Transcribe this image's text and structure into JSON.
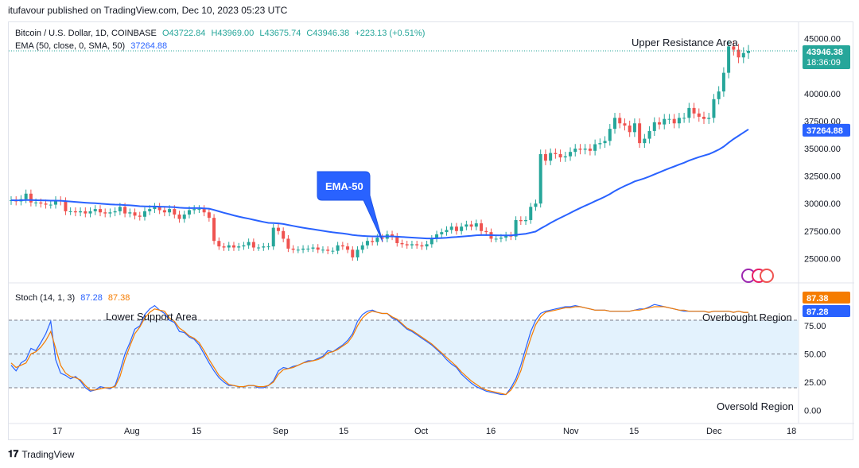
{
  "header": {
    "published": "itufavour published on TradingView.com, Dec 10, 2023 05:23 UTC"
  },
  "legend": {
    "symbol": "Bitcoin / U.S. Dollar, 1D, COINBASE",
    "o": "O43722.84",
    "h": "H43969.00",
    "l": "L43675.74",
    "c": "C43946.38",
    "change": "+223.13 (+0.51%)",
    "ema_label": "EMA (50, close, 0, SMA, 50)",
    "ema_value": "37264.88",
    "stoch_label": "Stoch (14, 1, 3)",
    "stoch_k": "87.28",
    "stoch_d": "87.38"
  },
  "annotations": {
    "upper": "Upper Resistance Area",
    "lower": "Lower Support Area",
    "overbought": "Overbought Region",
    "oversold": "Oversold Region",
    "ema_callout": "EMA-50"
  },
  "badges": {
    "price": "43946.38",
    "countdown": "18:36:09",
    "ema": "37264.88",
    "stoch_d": "87.38",
    "stoch_k": "87.28"
  },
  "footer": {
    "brand": "TradingView"
  },
  "colors": {
    "up": "#26a69a",
    "down": "#ef5350",
    "ema": "#2962ff",
    "stoch_k": "#2962ff",
    "stoch_d": "#f57c00",
    "band": "#e3f2fd"
  },
  "chart_data": [
    {
      "type": "candlestick",
      "title": "Bitcoin / U.S. Dollar, 1D, COINBASE",
      "price_axis": {
        "ticks": [
          "45000.00",
          "40000.00",
          "37500.00",
          "35000.00",
          "32500.00",
          "30000.00",
          "27500.00",
          "25000.00"
        ],
        "range": [
          23000,
          46500
        ]
      },
      "x_ticks": [
        "17",
        "Aug",
        "15",
        "Sep",
        "15",
        "Oct",
        "16",
        "Nov",
        "15",
        "Dec",
        "18"
      ],
      "closes": [
        30300,
        30200,
        30400,
        30900,
        30100,
        30100,
        30000,
        29900,
        29900,
        30300,
        30200,
        29300,
        29300,
        29200,
        29300,
        29100,
        29300,
        29500,
        29200,
        29100,
        29200,
        29300,
        29700,
        29100,
        29200,
        28900,
        28800,
        29300,
        29500,
        29700,
        29400,
        29200,
        29500,
        29000,
        28600,
        29000,
        29400,
        29500,
        29500,
        29200,
        28700,
        26600,
        26100,
        26000,
        26200,
        26000,
        26100,
        26200,
        26500,
        26000,
        26000,
        26100,
        26100,
        27800,
        27500,
        26800,
        25900,
        25800,
        25800,
        25900,
        25900,
        26000,
        25800,
        25800,
        25700,
        25700,
        26200,
        26100,
        25800,
        25100,
        25800,
        26200,
        26600,
        26500,
        26900,
        26800,
        27200,
        27000,
        26400,
        26300,
        26200,
        26300,
        26200,
        26100,
        26300,
        26800,
        27200,
        27400,
        27600,
        27900,
        27500,
        27900,
        28100,
        27900,
        28200,
        27500,
        27400,
        26800,
        26800,
        26900,
        27100,
        27000,
        28500,
        28400,
        28500,
        29700,
        30000,
        34500,
        33900,
        34600,
        34500,
        34200,
        34300,
        34700,
        35000,
        34900,
        35000,
        34800,
        35400,
        35500,
        35700,
        36800,
        37800,
        37300,
        37100,
        36500,
        37300,
        35500,
        35900,
        36600,
        37400,
        37200,
        37700,
        37700,
        37300,
        37800,
        37800,
        38700,
        38200,
        37900,
        37700,
        37800,
        39500,
        40200,
        41900,
        44300,
        44000,
        43300,
        43700,
        43900
      ],
      "ema50": {
        "name": "EMA (50, close, 0, SMA, 50)",
        "last": 37264.88
      },
      "annotations": [
        "Upper Resistance Area",
        "Lower Support Area",
        "EMA-50"
      ]
    },
    {
      "type": "line",
      "title": "Stoch (14, 1, 3)",
      "y_ticks": [
        "75.00",
        "50.00",
        "25.00",
        "0.00"
      ],
      "levels": [
        80,
        50,
        20
      ],
      "series": [
        {
          "name": "%K",
          "last": 87.28,
          "values": [
            40,
            35,
            42,
            45,
            55,
            53,
            60,
            68,
            79,
            45,
            33,
            31,
            28,
            30,
            26,
            20,
            17,
            18,
            21,
            20,
            19,
            22,
            35,
            50,
            60,
            72,
            75,
            85,
            90,
            93,
            89,
            86,
            80,
            78,
            70,
            69,
            65,
            63,
            58,
            50,
            42,
            35,
            29,
            25,
            22,
            22,
            21,
            21,
            22,
            22,
            20,
            20,
            22,
            26,
            35,
            38,
            37,
            39,
            40,
            42,
            44,
            44,
            46,
            48,
            53,
            52,
            55,
            58,
            62,
            68,
            79,
            85,
            88,
            89,
            87,
            86,
            86,
            82,
            80,
            76,
            72,
            70,
            67,
            64,
            61,
            58,
            54,
            50,
            45,
            41,
            38,
            32,
            28,
            24,
            21,
            19,
            17,
            16,
            15,
            14,
            14,
            20,
            28,
            40,
            55,
            70,
            80,
            86,
            88,
            89,
            90,
            91,
            92,
            92,
            93,
            92,
            91,
            90,
            89,
            89,
            89,
            88,
            88,
            88,
            88,
            88,
            89,
            90,
            90,
            92,
            94,
            93,
            92,
            91,
            90,
            89,
            88,
            88,
            88,
            88,
            88,
            87,
            88,
            88,
            88,
            88,
            87,
            88,
            87,
            87
          ]
        },
        {
          "name": "%D",
          "last": 87.38,
          "values": [
            42,
            38,
            40,
            42,
            50,
            52,
            56,
            62,
            70,
            55,
            40,
            33,
            30,
            29,
            27,
            22,
            18,
            18,
            19,
            20,
            20,
            21,
            30,
            45,
            57,
            68,
            74,
            82,
            87,
            90,
            89,
            88,
            82,
            79,
            73,
            70,
            66,
            64,
            60,
            53,
            45,
            38,
            31,
            27,
            23,
            22,
            21,
            21,
            22,
            22,
            21,
            21,
            22,
            25,
            32,
            36,
            37,
            38,
            40,
            42,
            43,
            44,
            45,
            47,
            51,
            52,
            54,
            57,
            60,
            66,
            75,
            82,
            86,
            88,
            87,
            86,
            86,
            83,
            81,
            77,
            73,
            71,
            68,
            65,
            62,
            59,
            55,
            51,
            47,
            43,
            39,
            34,
            30,
            26,
            23,
            20,
            18,
            17,
            16,
            15,
            14,
            18,
            25,
            35,
            50,
            64,
            76,
            83,
            87,
            88,
            89,
            90,
            91,
            91,
            92,
            92,
            91,
            90,
            89,
            89,
            89,
            88,
            88,
            88,
            88,
            88,
            89,
            89,
            90,
            91,
            92,
            92,
            92,
            91,
            90,
            89,
            89,
            88,
            88,
            88,
            88,
            87,
            88,
            88,
            88,
            88,
            87,
            88,
            87,
            87
          ]
        }
      ]
    }
  ]
}
